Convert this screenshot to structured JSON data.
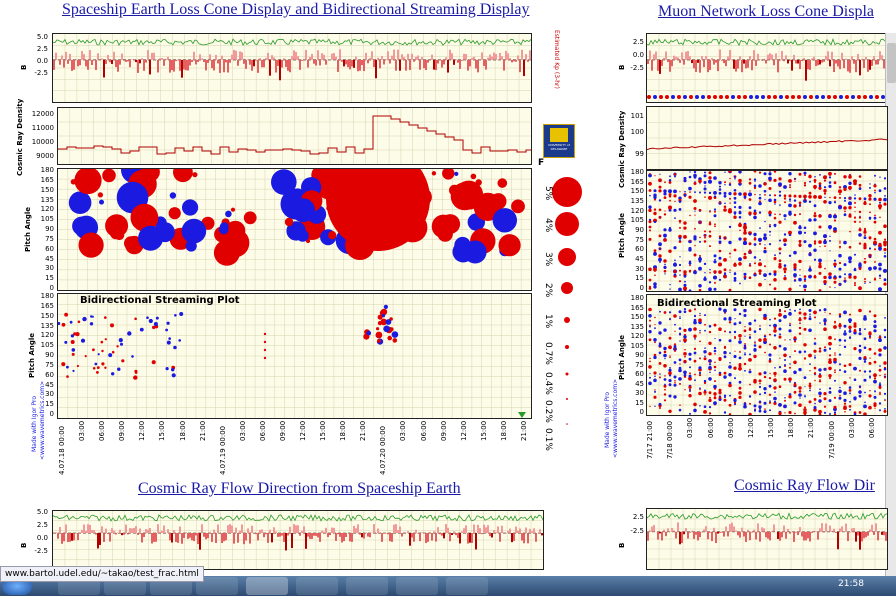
{
  "titles": {
    "left_top": "Spaceship Earth Loss Cone Display and Bidirectional Streaming Display",
    "right_top": "Muon Network Loss Cone Displa",
    "left_bottom": "Cosmic Ray Flow Direction from Spaceship Earth",
    "right_bottom": "Cosmic Ray Flow Dir"
  },
  "axis_labels": {
    "bz": "B",
    "cosmic_ray_density": "Cosmic Ray Density",
    "pitch_angle": "Pitch Angle",
    "estimated_kp": "Estimated Kp (3-hr)",
    "bidirectional": "Bidirectional Streaming Plot",
    "made_with": "Made with Igor Pro",
    "wavemetrics": "<www.wavemetrics.com>",
    "unit_F": "F"
  },
  "bz_ticks": [
    "5.0",
    "2.5",
    "0.0",
    "-2.5"
  ],
  "bz_ticks_right": [
    "2.5",
    "0.0",
    "-2.5"
  ],
  "density_ticks_left": [
    "12000",
    "11000",
    "10000",
    "9000"
  ],
  "density_ticks_right": [
    "101",
    "100",
    "99"
  ],
  "pitch_ticks": [
    "180",
    "165",
    "150",
    "135",
    "120",
    "105",
    "90",
    "75",
    "60",
    "45",
    "30",
    "15",
    "0"
  ],
  "pitch_ticks_bidir": [
    "180",
    "165",
    "150",
    "135",
    "120",
    "105",
    "90",
    "75",
    "60",
    "45",
    "30",
    "15",
    "0"
  ],
  "legend_pct": [
    "5%",
    "4%",
    "3%",
    "2%",
    "1%",
    "0.7%",
    "0.4%",
    "0.2%",
    "0.1%"
  ],
  "x_ticks_left": [
    "4.07.18 00:00",
    "03:00",
    "06:00",
    "09:00",
    "12:00",
    "15:00",
    "18:00",
    "21:00",
    "4.07.19 00:00",
    "03:00",
    "06:00",
    "09:00",
    "12:00",
    "15:00",
    "18:00",
    "21:00",
    "4.07.20 00:00",
    "03:00",
    "06:00",
    "09:00",
    "12:00",
    "15:00",
    "18:00",
    "21:00"
  ],
  "x_ticks_right": [
    "7/17 21:00",
    "7/18 00:00",
    "03:00",
    "06:00",
    "09:00",
    "12:00",
    "15:00",
    "18:00",
    "21:00",
    "7/19 00:00",
    "03:00",
    "06:00"
  ],
  "status_url": "www.bartol.udel.edu/~takao/test_frac.html",
  "clock": "21:58",
  "logo_text": "UNIVERSITY of DELAWARE",
  "colors": {
    "red": "#e00000",
    "blue": "#1a1ae0",
    "green": "#2a9a2a",
    "link": "#1a1aa6",
    "panel": "#fdfce8"
  }
}
